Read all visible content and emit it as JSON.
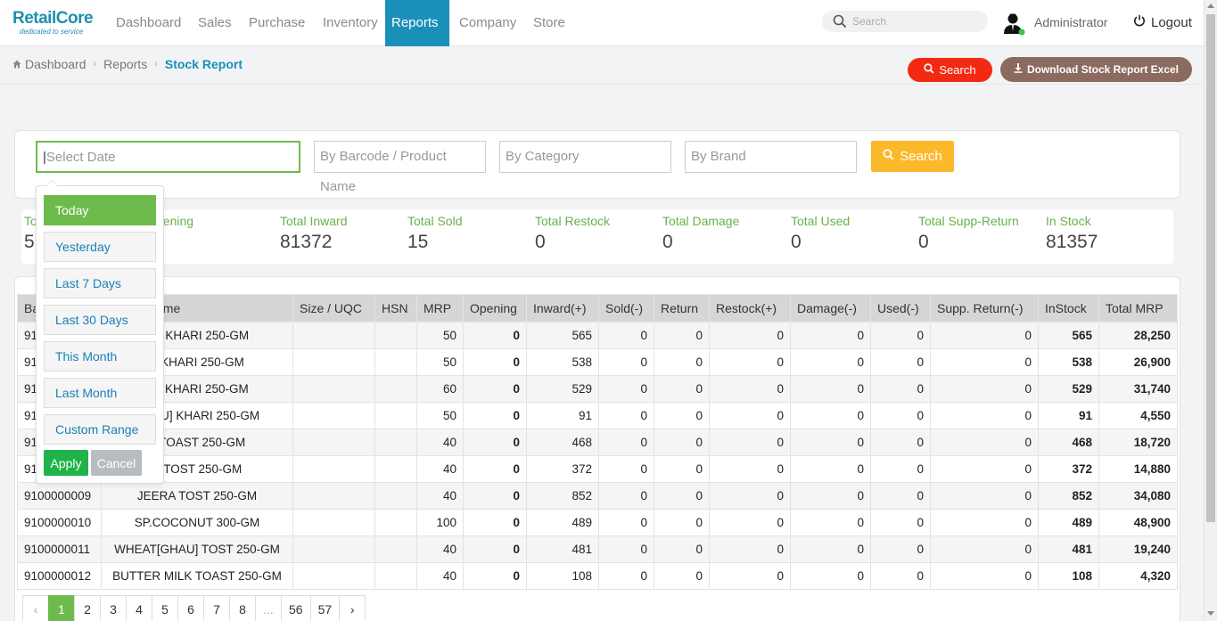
{
  "brand": {
    "name": "RetailCore",
    "tagline": "dedicated to service"
  },
  "nav": [
    {
      "label": "Dashboard"
    },
    {
      "label": "Sales"
    },
    {
      "label": "Purchase"
    },
    {
      "label": "Inventory"
    },
    {
      "label": "Reports"
    },
    {
      "label": "Company"
    },
    {
      "label": "Store"
    }
  ],
  "header": {
    "search_placeholder": "Search",
    "user": "Administrator",
    "logout": "Logout"
  },
  "breadcrumb": [
    "Dashboard",
    "Reports",
    "Stock Report"
  ],
  "actions": {
    "search": "Search",
    "download": "Download Stock Report Excel"
  },
  "filters": {
    "date_placeholder": "Select Date",
    "barcode_placeholder": "By Barcode / Product Name",
    "category_placeholder": "By Category",
    "brand_placeholder": "By Brand",
    "search": "Search"
  },
  "stats": [
    {
      "label": "To",
      "value": "5"
    },
    {
      "label": "pening",
      "value": ""
    },
    {
      "label": "Total Inward",
      "value": "81372"
    },
    {
      "label": "Total Sold",
      "value": "15"
    },
    {
      "label": "Total Restock",
      "value": "0"
    },
    {
      "label": "Total Damage",
      "value": "0"
    },
    {
      "label": "Total Used",
      "value": "0"
    },
    {
      "label": "Total Supp-Return",
      "value": "0"
    },
    {
      "label": "In Stock",
      "value": "81357"
    }
  ],
  "table": {
    "headers": [
      "Ba",
      "ame",
      "Size / UQC",
      "HSN",
      "MRP",
      "Opening",
      "Inward(+)",
      "Sold(-)",
      "Return",
      "Restock(+)",
      "Damage(-)",
      "Used(-)",
      "Supp. Return(-)",
      "InStock",
      "Total MRP"
    ],
    "rows": [
      {
        "barcode": "91",
        "name": "ER KHARI 250-GM",
        "size": "",
        "hsn": "",
        "mrp": "50",
        "opening": "0",
        "inward": "565",
        "sold": "0",
        "ret": "0",
        "restock": "0",
        "damage": "0",
        "used": "0",
        "supp": "0",
        "instock": "565",
        "total": "28,250"
      },
      {
        "barcode": "91",
        "name": "A KHARI 250-GM",
        "size": "",
        "hsn": "",
        "mrp": "50",
        "opening": "0",
        "inward": "538",
        "sold": "0",
        "ret": "0",
        "restock": "0",
        "damage": "0",
        "used": "0",
        "supp": "0",
        "instock": "538",
        "total": "26,900"
      },
      {
        "barcode": "91",
        "name": "SE KHARI 250-GM",
        "size": "",
        "hsn": "",
        "mrp": "60",
        "opening": "0",
        "inward": "529",
        "sold": "0",
        "ret": "0",
        "restock": "0",
        "damage": "0",
        "used": "0",
        "supp": "0",
        "instock": "529",
        "total": "31,740"
      },
      {
        "barcode": "91",
        "name": "GHAU] KHARI 250-GM",
        "size": "",
        "hsn": "",
        "mrp": "50",
        "opening": "0",
        "inward": "91",
        "sold": "0",
        "ret": "0",
        "restock": "0",
        "damage": "0",
        "used": "0",
        "supp": "0",
        "instock": "91",
        "total": "4,550"
      },
      {
        "barcode": "91",
        "name": "T TOAST 250-GM",
        "size": "",
        "hsn": "",
        "mrp": "40",
        "opening": "0",
        "inward": "468",
        "sold": "0",
        "ret": "0",
        "restock": "0",
        "damage": "0",
        "used": "0",
        "supp": "0",
        "instock": "468",
        "total": "18,720"
      },
      {
        "barcode": "91",
        "name": "K TOST 250-GM",
        "size": "",
        "hsn": "",
        "mrp": "40",
        "opening": "0",
        "inward": "372",
        "sold": "0",
        "ret": "0",
        "restock": "0",
        "damage": "0",
        "used": "0",
        "supp": "0",
        "instock": "372",
        "total": "14,880"
      },
      {
        "barcode": "9100000009",
        "name": "JEERA TOST 250-GM",
        "size": "",
        "hsn": "",
        "mrp": "40",
        "opening": "0",
        "inward": "852",
        "sold": "0",
        "ret": "0",
        "restock": "0",
        "damage": "0",
        "used": "0",
        "supp": "0",
        "instock": "852",
        "total": "34,080"
      },
      {
        "barcode": "9100000010",
        "name": "SP.COCONUT 300-GM",
        "size": "",
        "hsn": "",
        "mrp": "100",
        "opening": "0",
        "inward": "489",
        "sold": "0",
        "ret": "0",
        "restock": "0",
        "damage": "0",
        "used": "0",
        "supp": "0",
        "instock": "489",
        "total": "48,900"
      },
      {
        "barcode": "9100000011",
        "name": "WHEAT[GHAU] TOST 250-GM",
        "size": "",
        "hsn": "",
        "mrp": "40",
        "opening": "0",
        "inward": "481",
        "sold": "0",
        "ret": "0",
        "restock": "0",
        "damage": "0",
        "used": "0",
        "supp": "0",
        "instock": "481",
        "total": "19,240"
      },
      {
        "barcode": "9100000012",
        "name": "BUTTER MILK TOAST 250-GM",
        "size": "",
        "hsn": "",
        "mrp": "40",
        "opening": "0",
        "inward": "108",
        "sold": "0",
        "ret": "0",
        "restock": "0",
        "damage": "0",
        "used": "0",
        "supp": "0",
        "instock": "108",
        "total": "4,320"
      }
    ]
  },
  "pagination": [
    "‹",
    "1",
    "2",
    "3",
    "4",
    "5",
    "6",
    "7",
    "8",
    "...",
    "56",
    "57",
    "›"
  ],
  "date_ranges": [
    "Today",
    "Yesterday",
    "Last 7 Days",
    "Last 30 Days",
    "This Month",
    "Last Month",
    "Custom Range"
  ],
  "dropdown_buttons": {
    "apply": "Apply",
    "cancel": "Cancel"
  },
  "colors": {
    "accent": "#1a8fb8",
    "green": "#6dbb4c",
    "red": "#f32a12",
    "yellow": "#fbb829",
    "brown": "#8c6a5e"
  }
}
